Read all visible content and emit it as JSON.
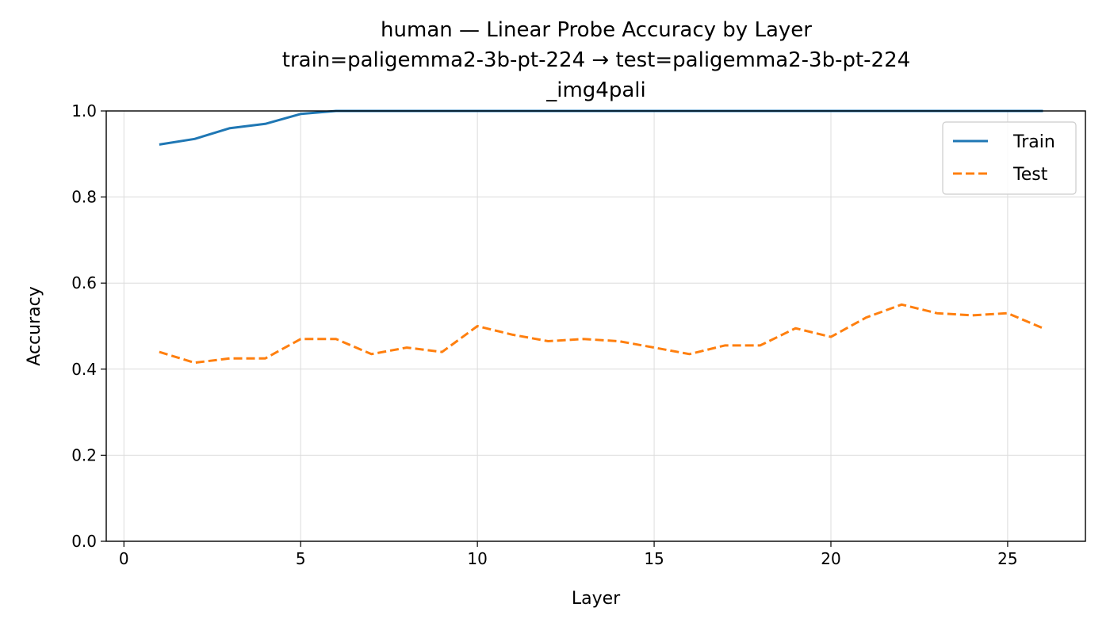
{
  "chart_data": {
    "type": "line",
    "title": "human — Linear Probe Accuracy by Layer",
    "subtitle_lines": [
      "train=paligemma2-3b-pt-224 → test=paligemma2-3b-pt-224",
      "_img4pali"
    ],
    "xlabel": "Layer",
    "ylabel": "Accuracy",
    "xlim": [
      -0.5,
      27.2
    ],
    "ylim": [
      0.0,
      1.0
    ],
    "x_ticks": [
      0,
      5,
      10,
      15,
      20,
      25
    ],
    "y_ticks": [
      0.0,
      0.2,
      0.4,
      0.6,
      0.8,
      1.0
    ],
    "grid": true,
    "legend_position": "top-right",
    "x": [
      1,
      2,
      3,
      4,
      5,
      6,
      7,
      8,
      9,
      10,
      11,
      12,
      13,
      14,
      15,
      16,
      17,
      18,
      19,
      20,
      21,
      22,
      23,
      24,
      25,
      26
    ],
    "series": [
      {
        "name": "Train",
        "color": "#1f77b4",
        "style": "solid",
        "values": [
          0.922,
          0.935,
          0.96,
          0.97,
          0.993,
          1.0,
          1.0,
          1.0,
          1.0,
          1.0,
          1.0,
          1.0,
          1.0,
          1.0,
          1.0,
          1.0,
          1.0,
          1.0,
          1.0,
          1.0,
          1.0,
          1.0,
          1.0,
          1.0,
          1.0,
          1.0
        ]
      },
      {
        "name": "Test",
        "color": "#ff7f0e",
        "style": "dashed",
        "values": [
          0.44,
          0.415,
          0.425,
          0.425,
          0.47,
          0.47,
          0.435,
          0.45,
          0.44,
          0.5,
          0.48,
          0.465,
          0.47,
          0.465,
          0.45,
          0.435,
          0.455,
          0.455,
          0.495,
          0.475,
          0.52,
          0.55,
          0.53,
          0.525,
          0.53,
          0.495
        ]
      }
    ]
  }
}
